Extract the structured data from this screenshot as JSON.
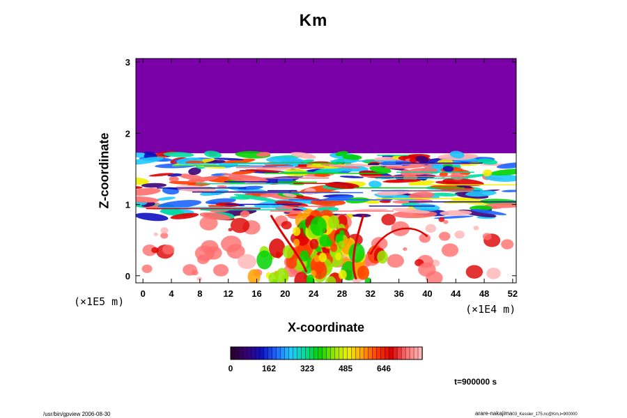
{
  "chart_data": {
    "type": "heatmap",
    "title": "Km",
    "xlabel": "X-coordinate",
    "ylabel": "Z-coordinate",
    "x_unit": "(×1E4 m)",
    "y_unit": "(×1E5 m)",
    "xlim": [
      -1,
      52.5
    ],
    "ylim": [
      -0.1,
      3.05
    ],
    "x_ticks": [
      "0",
      "4",
      "8",
      "12",
      "16",
      "20",
      "24",
      "28",
      "32",
      "36",
      "40",
      "44",
      "48",
      "52"
    ],
    "y_ticks": [
      "0",
      "1",
      "2",
      "3"
    ],
    "colorbar": {
      "tick_labels": [
        "0",
        "162",
        "323",
        "485",
        "646"
      ],
      "colors": [
        "#2a0030",
        "#3a0078",
        "#1010c0",
        "#1e64ff",
        "#1ec8ff",
        "#00dca0",
        "#00d200",
        "#96e600",
        "#f0f000",
        "#ffa000",
        "#ff3c00",
        "#dc0000",
        "#ff6e6e",
        "#ffb4b4"
      ]
    },
    "fields": {
      "upper_layer_color": "#7a00a8",
      "upper_layer_bottom": 1.72
    },
    "time_label": "t=900000 s"
  },
  "footer": {
    "left": "/usr/bin/gpview 2006-08-30",
    "right_main": "arare-nakajima",
    "right_small": "03_Kessler_175.nc@Km,t=900000"
  }
}
